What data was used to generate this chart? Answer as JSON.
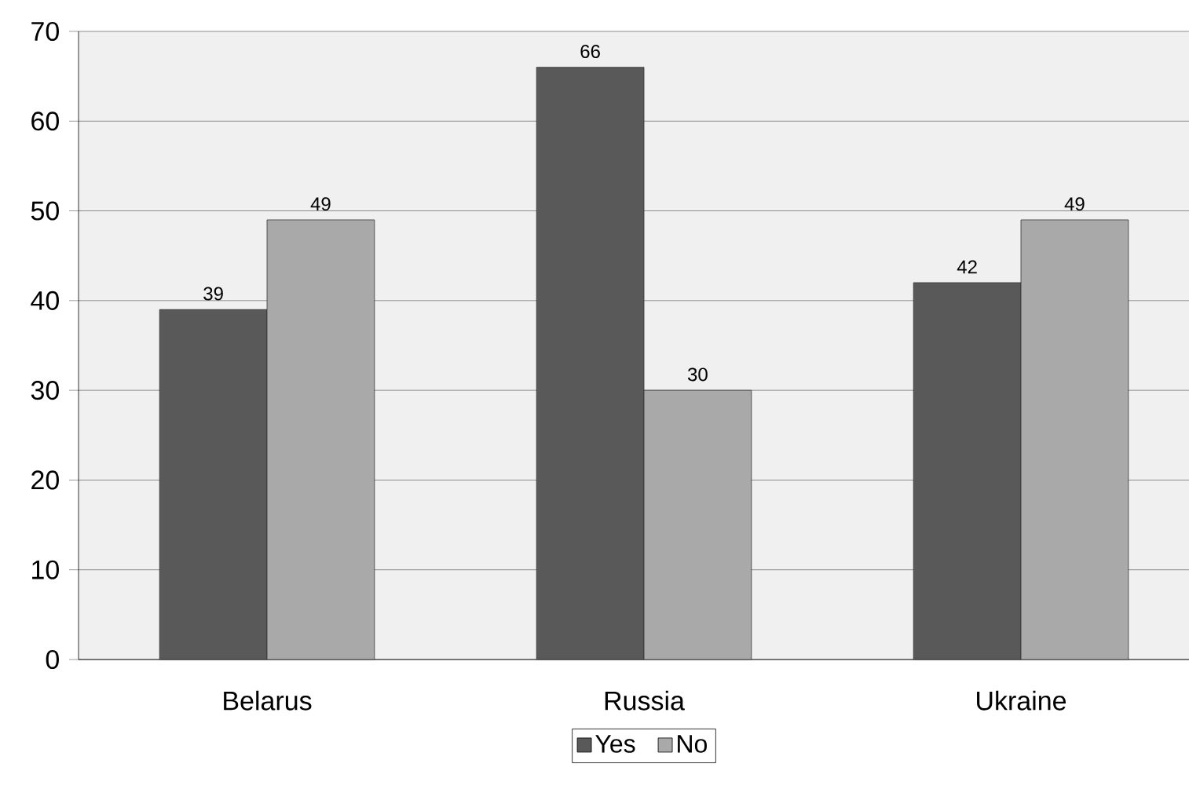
{
  "chart_data": {
    "type": "bar",
    "categories": [
      "Belarus",
      "Russia",
      "Ukraine"
    ],
    "series": [
      {
        "name": "Yes",
        "color": "#595959",
        "values": [
          39,
          66,
          42
        ]
      },
      {
        "name": "No",
        "color": "#a9a9a9",
        "values": [
          49,
          30,
          49
        ]
      }
    ],
    "ylim": [
      0,
      70
    ],
    "yticks": [
      0,
      10,
      20,
      30,
      40,
      50,
      60,
      70
    ],
    "grid": "y",
    "legend": "bottom",
    "data_labels": true
  }
}
